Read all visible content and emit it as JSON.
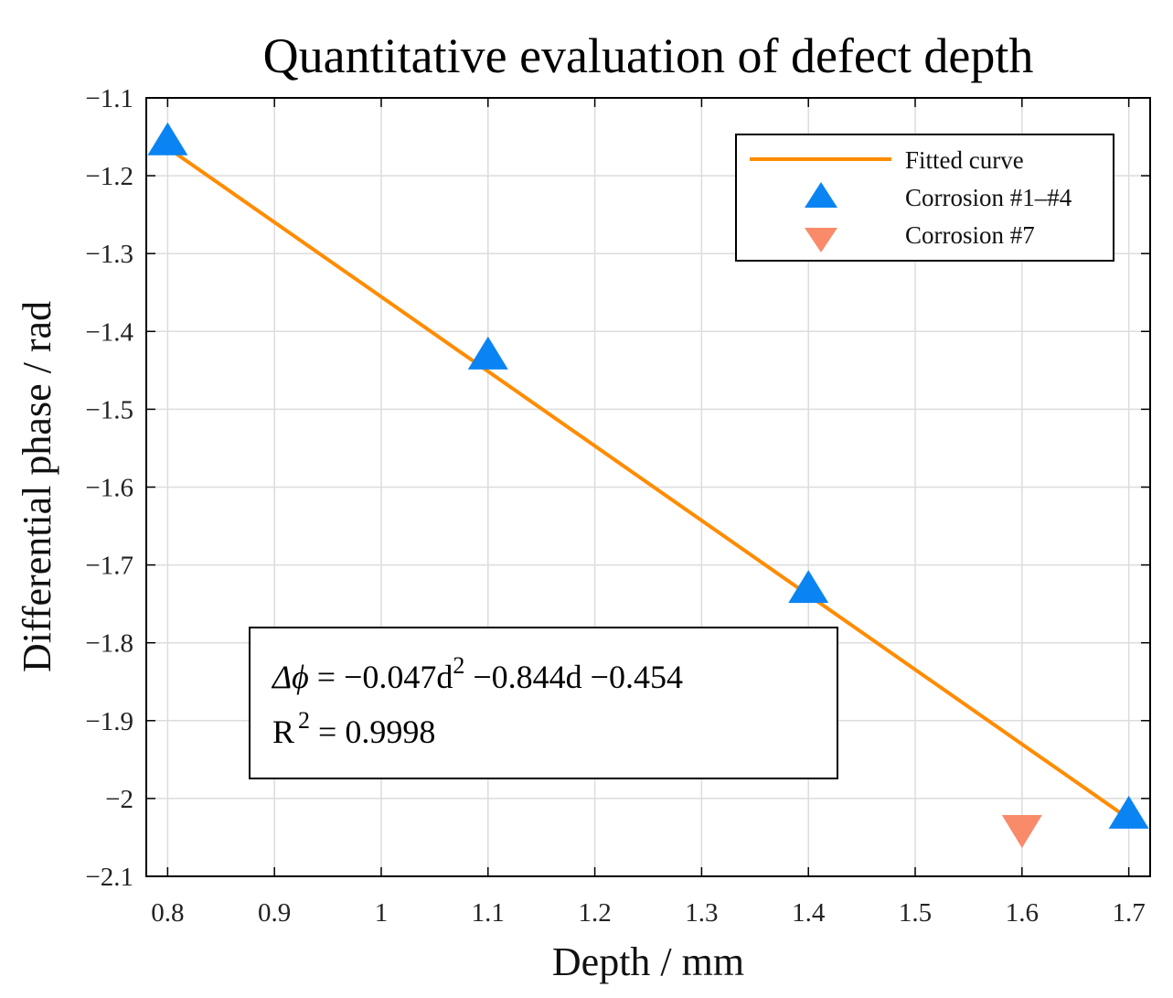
{
  "chart_data": {
    "type": "scatter",
    "title": "Quantitative evaluation of defect depth",
    "xlabel": "Depth / mm",
    "ylabel": "Differential phase / rad",
    "xlim": [
      0.78,
      1.72
    ],
    "ylim": [
      -2.1,
      -1.1
    ],
    "grid": true,
    "xticks": [
      0.8,
      0.9,
      1,
      1.1,
      1.2,
      1.3,
      1.4,
      1.5,
      1.6,
      1.7
    ],
    "xtick_labels": [
      "0.8",
      "0.9",
      "1",
      "1.1",
      "1.2",
      "1.3",
      "1.4",
      "1.5",
      "1.6",
      "1.7"
    ],
    "yticks": [
      -1.1,
      -1.2,
      -1.3,
      -1.4,
      -1.5,
      -1.6,
      -1.7,
      -1.8,
      -1.9,
      -2.0,
      -2.1
    ],
    "ytick_labels": [
      "−1.1",
      "−1.2",
      "−1.3",
      "−1.4",
      "−1.5",
      "−1.6",
      "−1.7",
      "−1.8",
      "−1.9",
      "−2",
      "−2.1"
    ],
    "legend_position": "top-right",
    "series": [
      {
        "name": "Fitted curve",
        "kind": "line",
        "color": "#ff8c00",
        "x": [
          0.8,
          1.7
        ],
        "y": [
          -1.164,
          -2.026
        ]
      },
      {
        "name": "Corrosion #1–#4",
        "kind": "marker",
        "marker": "triangle-up",
        "color": "#0b84f3",
        "x": [
          0.8,
          1.1,
          1.4,
          1.7
        ],
        "y": [
          -1.155,
          -1.43,
          -1.73,
          -2.02
        ]
      },
      {
        "name": "Corrosion #7",
        "kind": "marker",
        "marker": "triangle-down",
        "color": "#f98a6a",
        "x": [
          1.6
        ],
        "y": [
          -2.04
        ]
      }
    ],
    "annotation": {
      "eq_lhs": "Δϕ",
      "eq_rest": " = −0.047d",
      "eq_exp": "2",
      "eq_tail": "  −0.844d  −0.454",
      "r2_base": "R",
      "r2_exp": "2",
      "r2_value": " = 0.9998"
    }
  }
}
